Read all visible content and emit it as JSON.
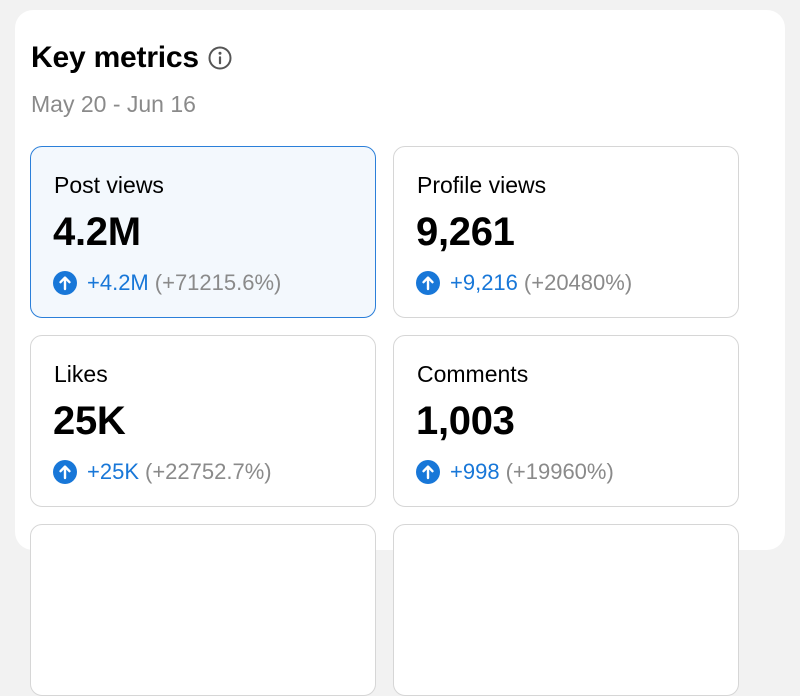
{
  "header": {
    "title": "Key metrics",
    "info_icon": "info-icon",
    "date_range": "May 20 - Jun 16"
  },
  "colors": {
    "accent": "#1877d8",
    "selected_border": "#2b7fd9",
    "selected_background": "#f3f8fd",
    "muted_text": "#8a8a8a"
  },
  "metrics": [
    {
      "label": "Post views",
      "value": "4.2M",
      "delta": "+4.2M",
      "percent": "(+71215.6%)",
      "trend_icon": "arrow-up-circle-icon",
      "selected": true
    },
    {
      "label": "Profile views",
      "value": "9,261",
      "delta": "+9,216",
      "percent": "(+20480%)",
      "trend_icon": "arrow-up-circle-icon",
      "selected": false
    },
    {
      "label": "Likes",
      "value": "25K",
      "delta": "+25K",
      "percent": "(+22752.7%)",
      "trend_icon": "arrow-up-circle-icon",
      "selected": false
    },
    {
      "label": "Comments",
      "value": "1,003",
      "delta": "+998",
      "percent": "(+19960%)",
      "trend_icon": "arrow-up-circle-icon",
      "selected": false
    }
  ]
}
